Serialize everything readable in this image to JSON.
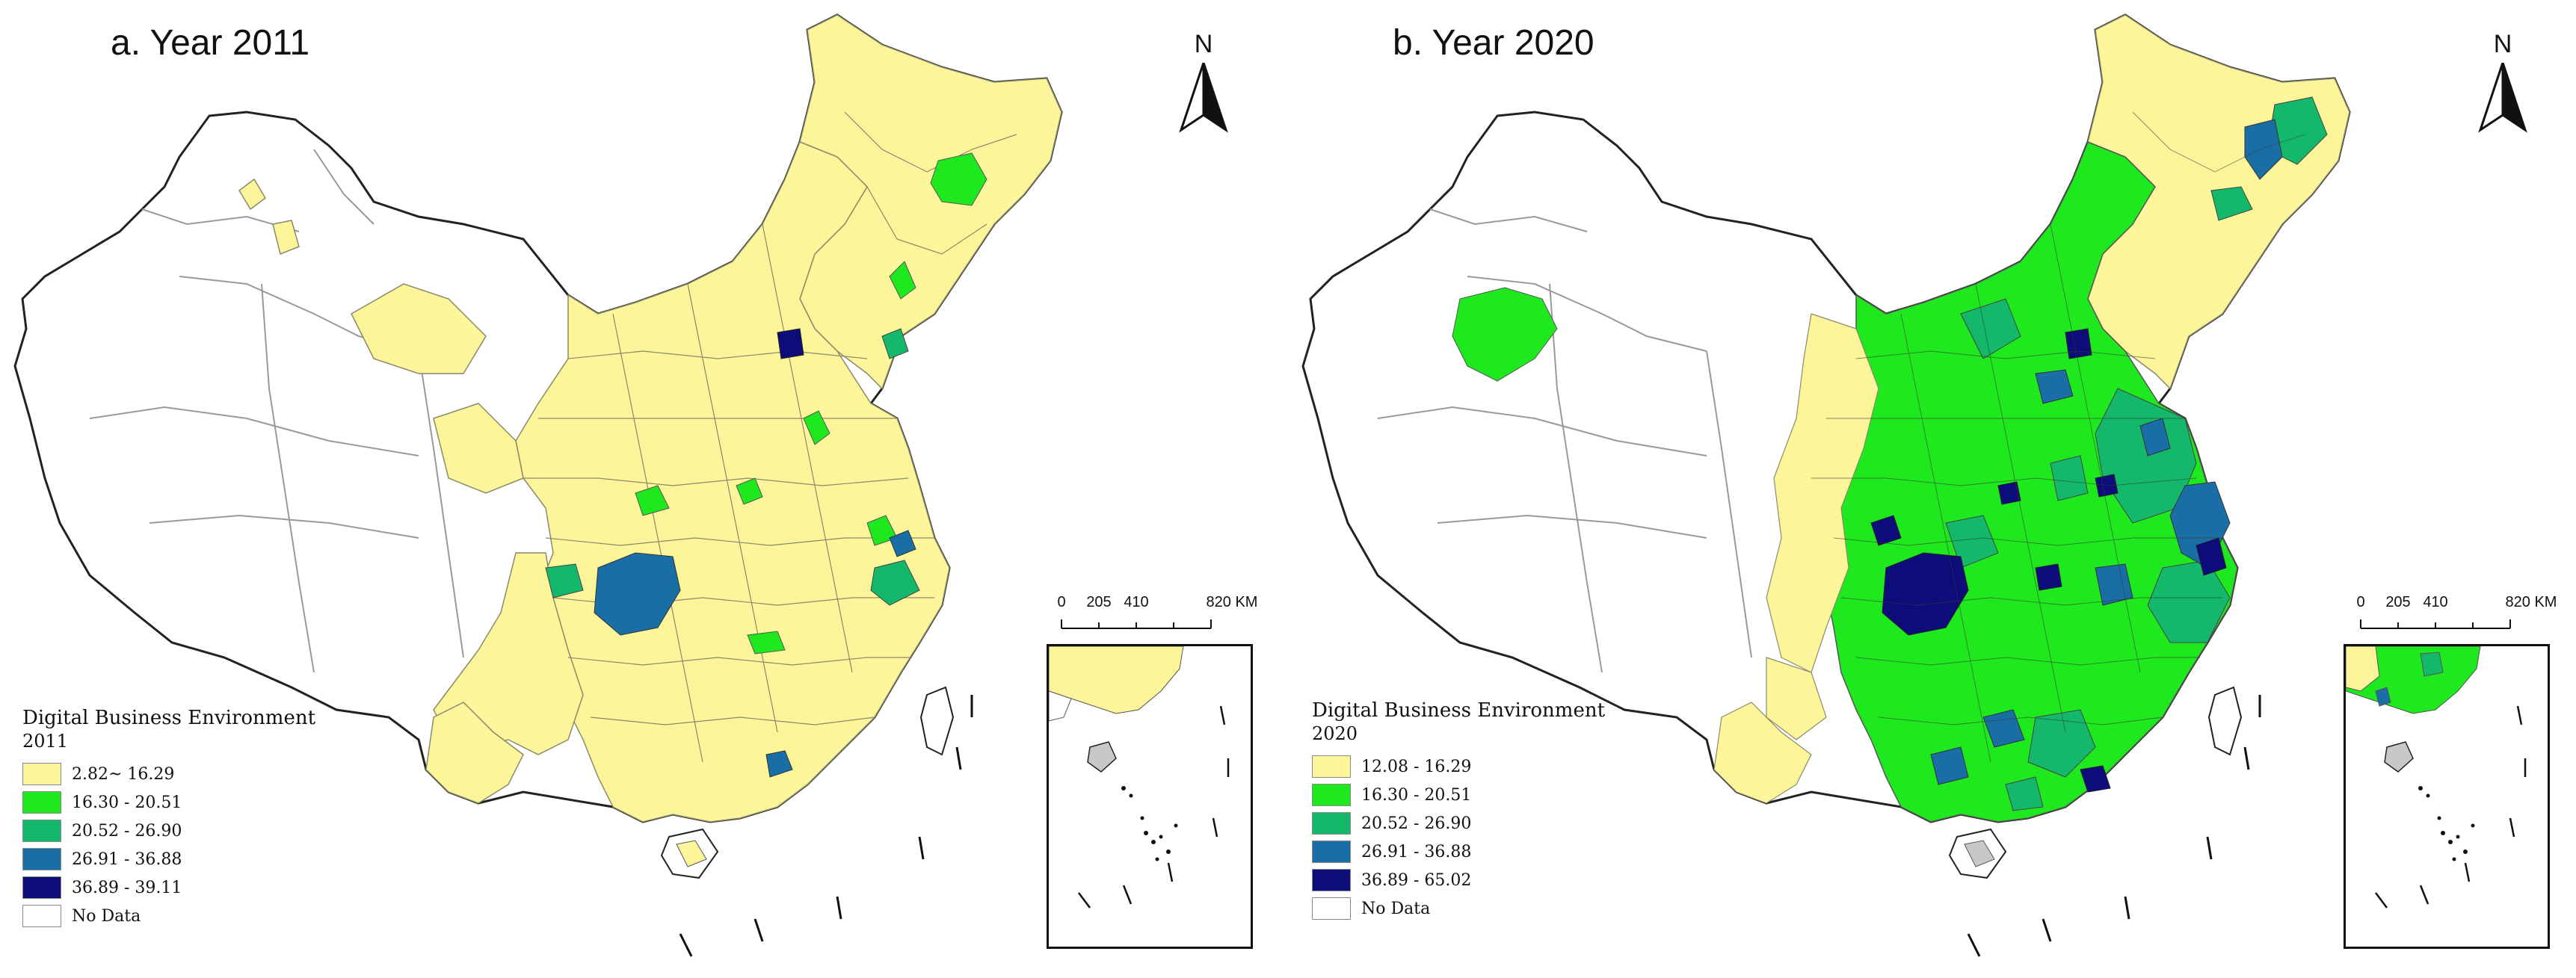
{
  "panels": [
    {
      "title": "a. Year 2011",
      "legend_title": "Digital Business Environment",
      "legend_year": "2011",
      "classes": [
        {
          "label": "2.82~ 16.29",
          "color": "#fdf59a"
        },
        {
          "label": "16.30 - 20.51",
          "color": "#1ee81e"
        },
        {
          "label": "20.52 - 26.90",
          "color": "#13b86a"
        },
        {
          "label": "26.91 - 36.88",
          "color": "#1a6ea6"
        },
        {
          "label": "36.89 - 39.11",
          "color": "#0c0c7a"
        },
        {
          "label": "No Data",
          "color": "#ffffff"
        }
      ],
      "scale_labels": [
        "0",
        "205",
        "410",
        "820 KM"
      ]
    },
    {
      "title": "b. Year 2020",
      "legend_title": "Digital Business Environment",
      "legend_year": "2020",
      "classes": [
        {
          "label": "12.08 - 16.29",
          "color": "#fdf59a"
        },
        {
          "label": "16.30 - 20.51",
          "color": "#1ee81e"
        },
        {
          "label": "20.52 - 26.90",
          "color": "#13b86a"
        },
        {
          "label": "26.91 - 36.88",
          "color": "#1a6ea6"
        },
        {
          "label": "36.89 - 65.02",
          "color": "#0c0c7a"
        },
        {
          "label": "No Data",
          "color": "#ffffff"
        }
      ],
      "scale_labels": [
        "0",
        "205",
        "410",
        "820 KM"
      ]
    }
  ],
  "north_label": "N"
}
